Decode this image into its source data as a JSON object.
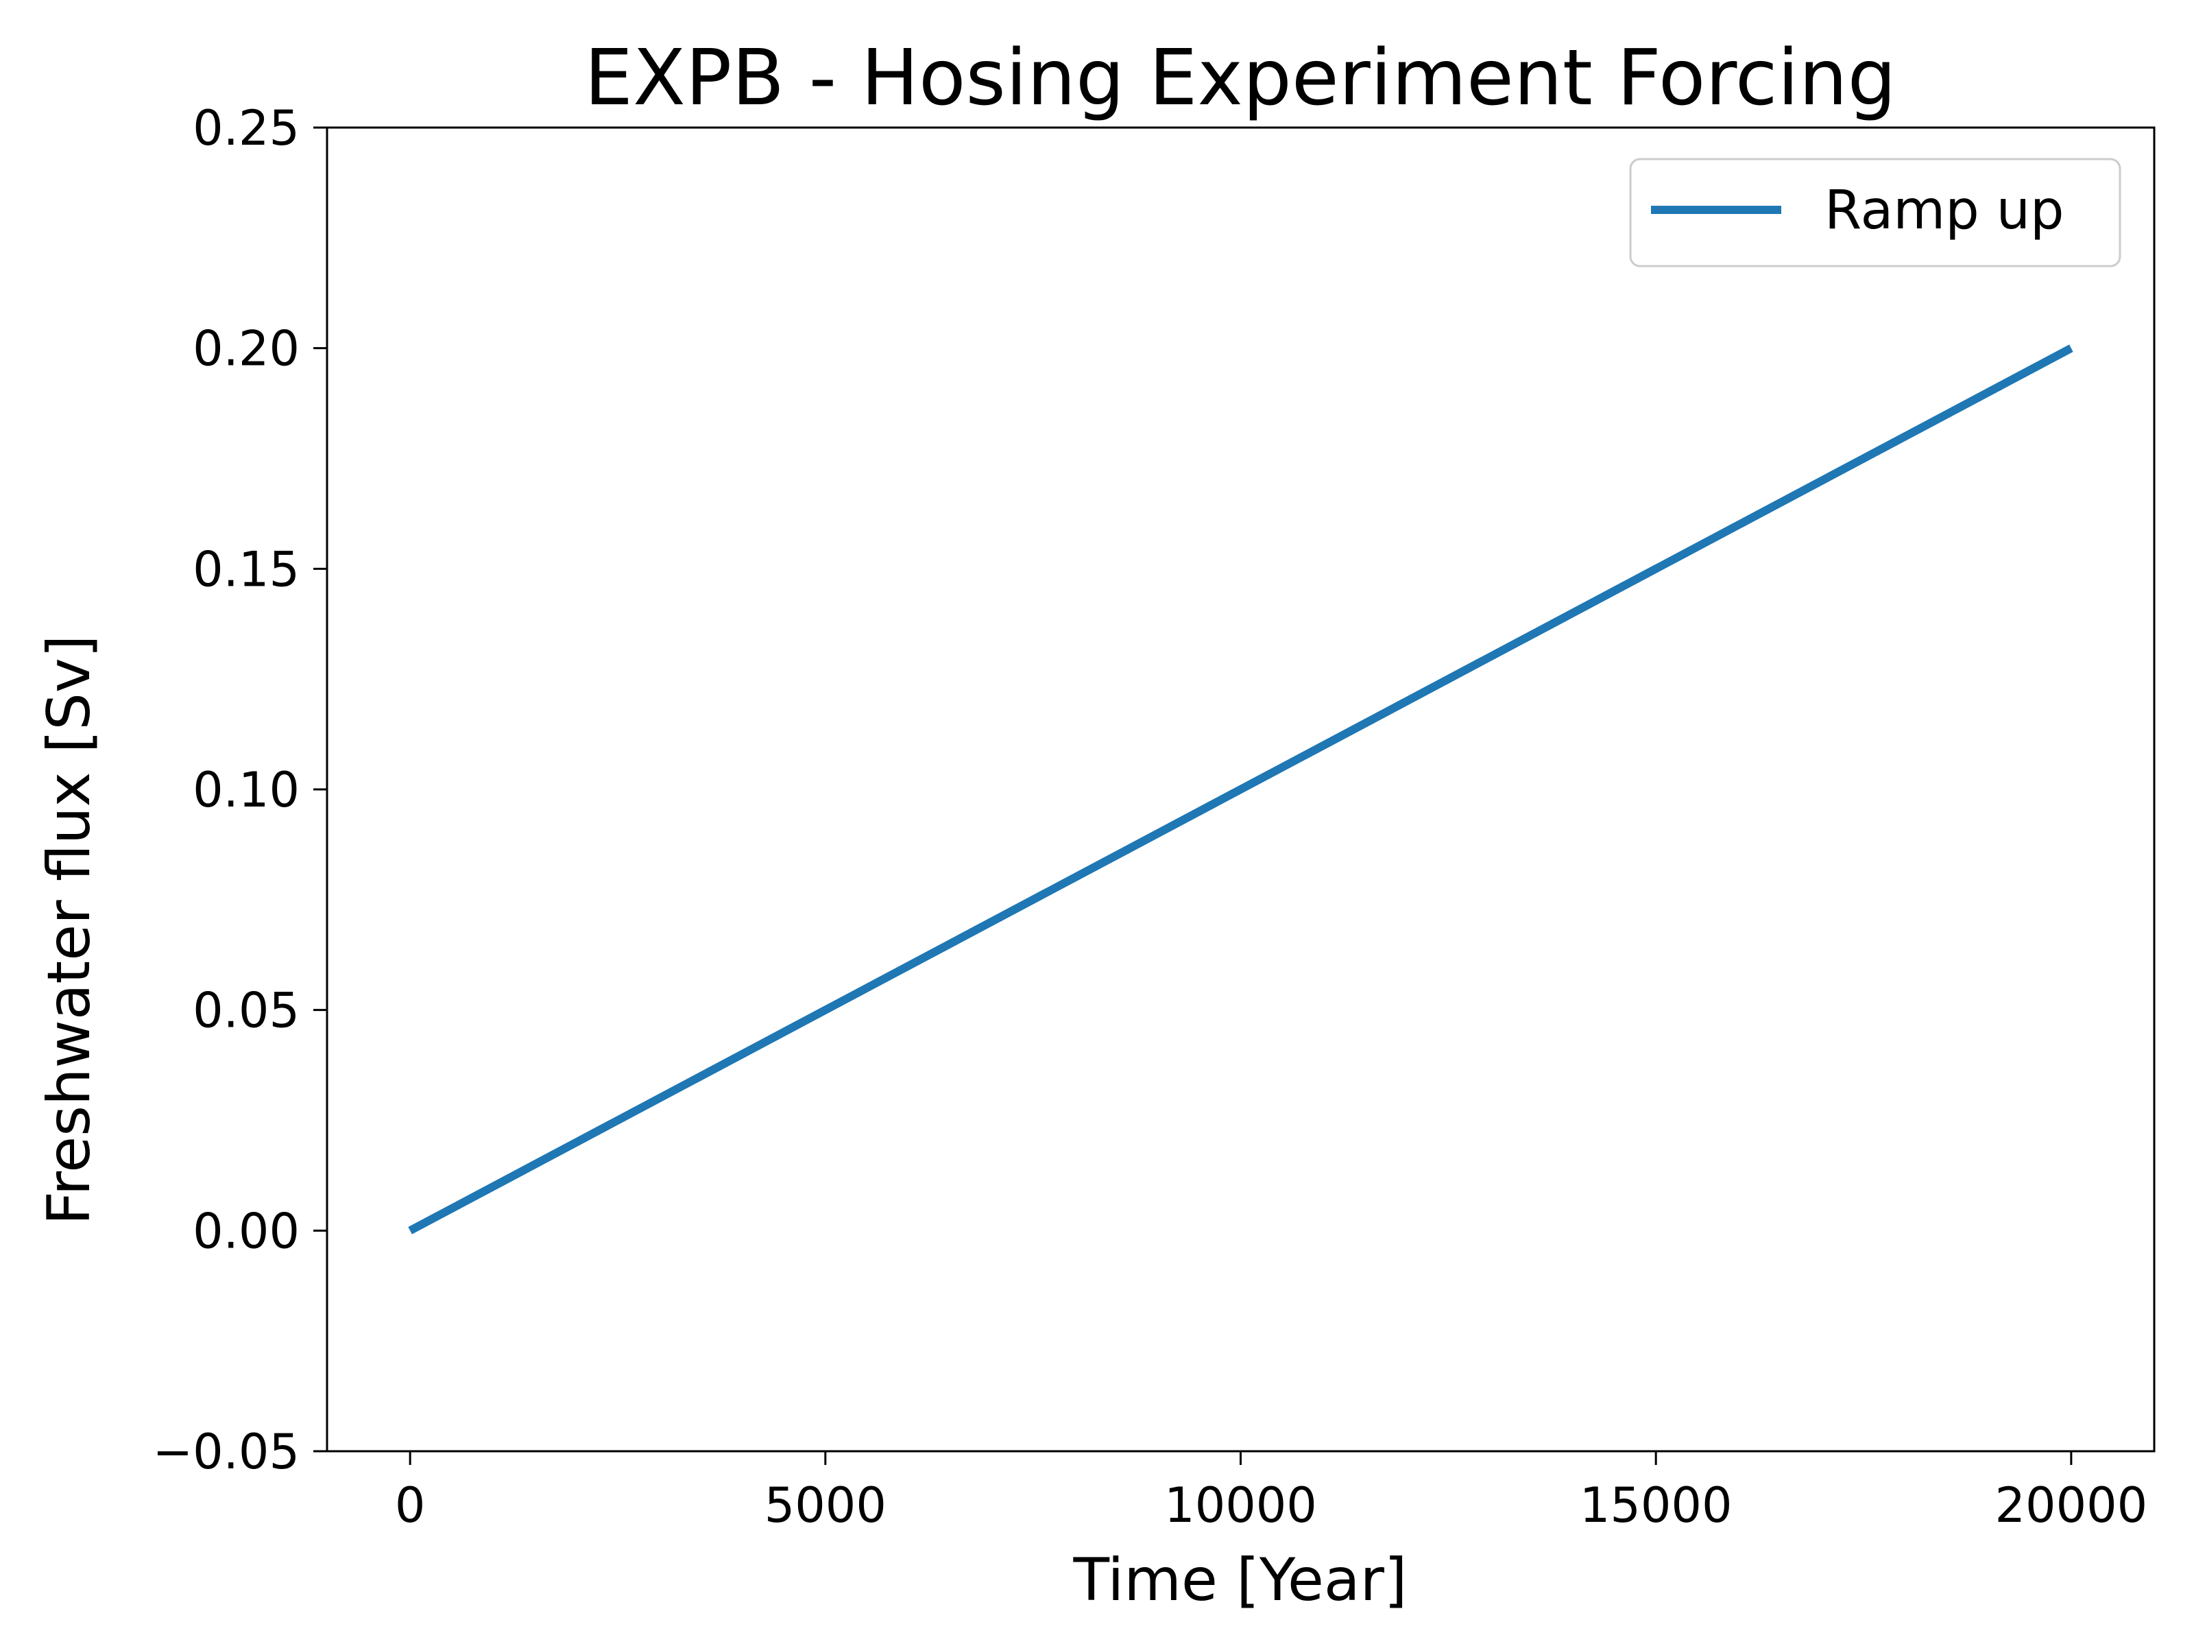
{
  "chart_data": {
    "type": "line",
    "title": "EXPB - Hosing Experiment Forcing",
    "xlabel": "Time [Year]",
    "ylabel": "Freshwater flux [Sv]",
    "xlim": [
      -1000,
      21000
    ],
    "ylim": [
      -0.05,
      0.25
    ],
    "xticks": [
      0,
      5000,
      10000,
      15000,
      20000
    ],
    "xtick_labels": [
      "0",
      "5000",
      "10000",
      "15000",
      "20000"
    ],
    "yticks": [
      -0.05,
      0.0,
      0.05,
      0.1,
      0.15,
      0.2,
      0.25
    ],
    "ytick_labels": [
      "−0.05",
      "0.00",
      "0.05",
      "0.10",
      "0.15",
      "0.20",
      "0.25"
    ],
    "grid": false,
    "legend_position": "top-right",
    "series": [
      {
        "name": "Ramp up",
        "color": "#1f77b4",
        "x": [
          0,
          20000
        ],
        "y": [
          0.0,
          0.2
        ]
      }
    ]
  }
}
